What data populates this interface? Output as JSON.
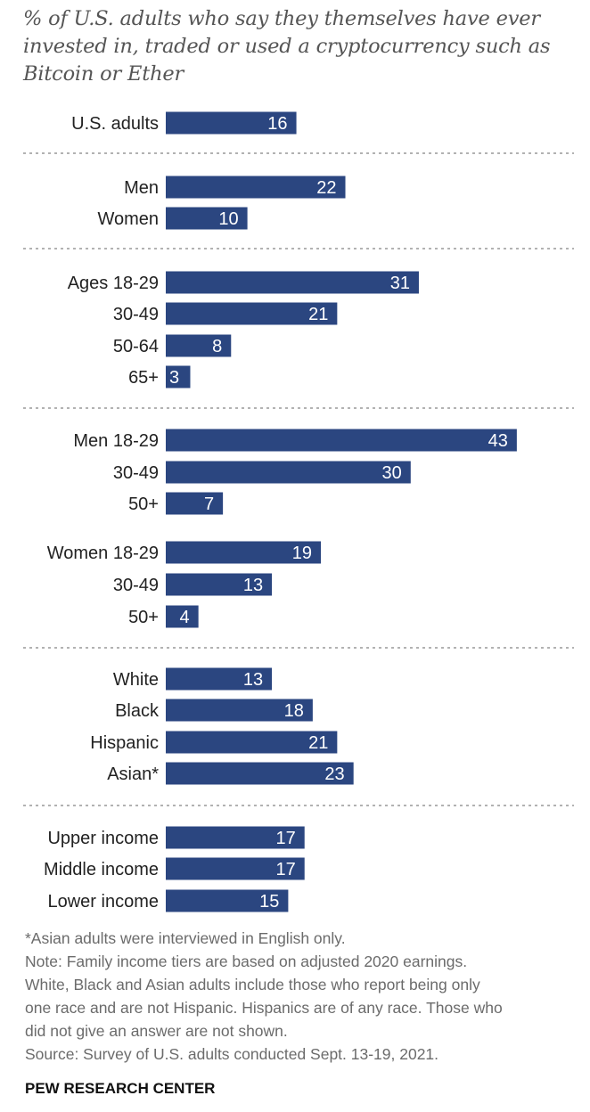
{
  "chart_data": {
    "type": "bar",
    "orientation": "horizontal",
    "subtitle": "% of U.S. adults who say they themselves have ever invested in, traded or used a cryptocurrency such as Bitcoin or Ether",
    "bar_color": "#2b4680",
    "label_color": "#ffffff",
    "divider_color": "#999999",
    "xlim": [
      0,
      43
    ],
    "groups": [
      {
        "categories": [
          "U.S. adults"
        ],
        "values": [
          16
        ]
      },
      {
        "categories": [
          "Men",
          "Women"
        ],
        "values": [
          22,
          10
        ]
      },
      {
        "categories": [
          "Ages 18-29",
          "30-49",
          "50-64",
          "65+"
        ],
        "values": [
          31,
          21,
          8,
          3
        ]
      },
      {
        "categories": [
          "Men 18-29",
          "30-49",
          "50+"
        ],
        "values": [
          43,
          30,
          7
        ]
      },
      {
        "categories": [
          "Women 18-29",
          "30-49",
          "50+"
        ],
        "values": [
          19,
          13,
          4
        ]
      },
      {
        "categories": [
          "White",
          "Black",
          "Hispanic",
          "Asian*"
        ],
        "values": [
          13,
          18,
          21,
          23
        ]
      },
      {
        "categories": [
          "Upper income",
          "Middle income",
          "Lower income"
        ],
        "values": [
          17,
          17,
          15
        ]
      }
    ]
  },
  "notes": [
    "*Asian adults were interviewed in English only.",
    "Note: Family income tiers are based on adjusted 2020 earnings.",
    "White, Black and Asian adults include those who report being only",
    "one race and are not Hispanic. Hispanics are of any race. Those who",
    "did not give an answer are not shown.",
    "Source: Survey of U.S. adults conducted Sept. 13-19, 2021."
  ],
  "brand": "PEW RESEARCH CENTER"
}
